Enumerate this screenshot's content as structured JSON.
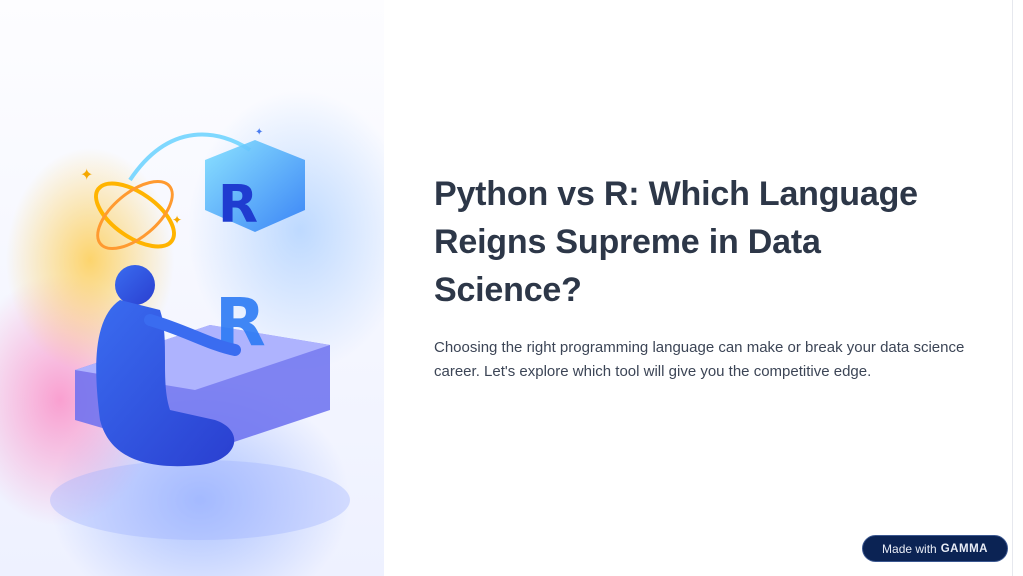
{
  "slide": {
    "title": "Python vs R: Which Language Reigns Supreme in Data Science?",
    "body": "Choosing the right programming language can make or break your data science career. Let's explore which tool will give you the competitive edge."
  },
  "illustration": {
    "letters": [
      "R",
      "R"
    ]
  },
  "badge": {
    "prefix": "Made with",
    "brand": "GAMMA"
  },
  "colors": {
    "title": "#2d3748",
    "body": "#3c4556",
    "badge_bg": "#0b2354"
  }
}
